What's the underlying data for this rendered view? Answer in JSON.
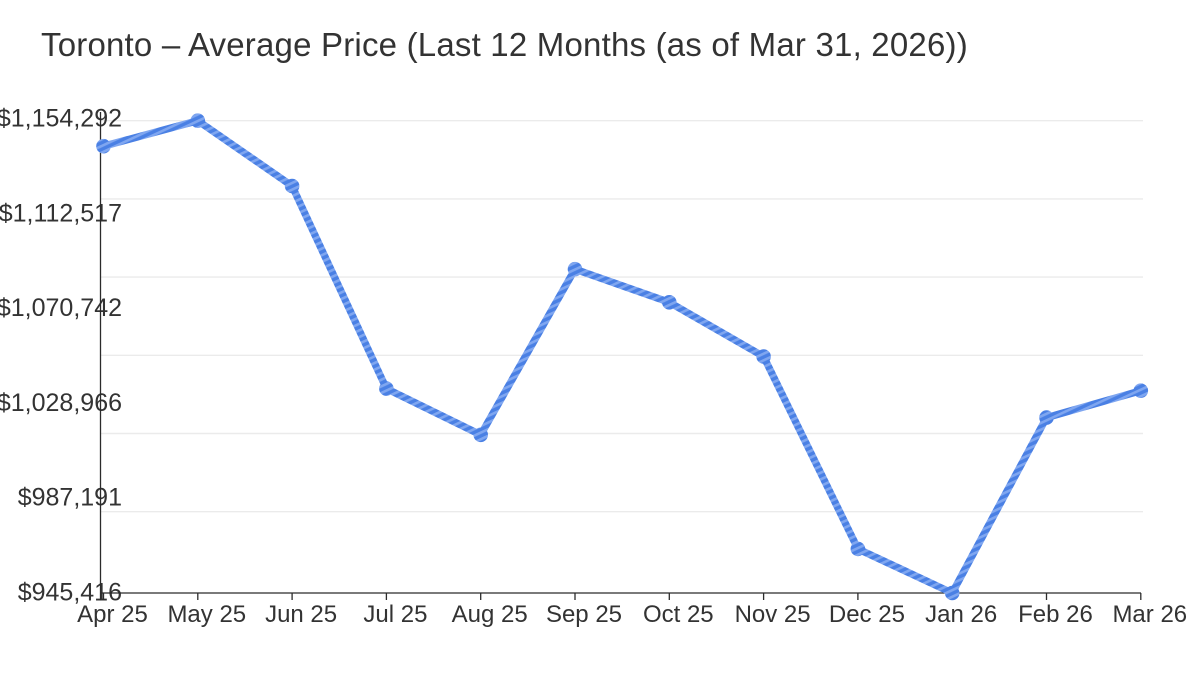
{
  "title": "Toronto – Average Price (Last 12 Months (as of Mar 31, 2026))",
  "chart_data": {
    "type": "line",
    "title": "Toronto – Average Price (Last 12 Months (as of Mar 31, 2026))",
    "categories": [
      "Apr 25",
      "May 25",
      "Jun 25",
      "Jul 25",
      "Aug 25",
      "Sep 25",
      "Oct 25",
      "Nov 25",
      "Dec 25",
      "Jan 26",
      "Feb 26",
      "Mar 26"
    ],
    "series": [
      {
        "name": "Average Price",
        "values": [
          1143000,
          1154292,
          1125400,
          1035800,
          1015400,
          1088600,
          1074000,
          1050000,
          964900,
          945416,
          1023000,
          1034900
        ]
      }
    ],
    "y_tick_labels": [
      "$1,154,292",
      "$1,112,517",
      "$1,070,742",
      "$1,028,966",
      "$987,191",
      "$945,416"
    ],
    "ylim": [
      945416,
      1154292
    ],
    "xlabel": "",
    "ylabel": "",
    "grid": "horizontal",
    "legend": "none",
    "colors": {
      "line": "#4a80e4",
      "line_stripe": "#7fa6f0",
      "grid": "#ebebeb",
      "axis": "#2b2b2b",
      "text": "#333333"
    }
  }
}
